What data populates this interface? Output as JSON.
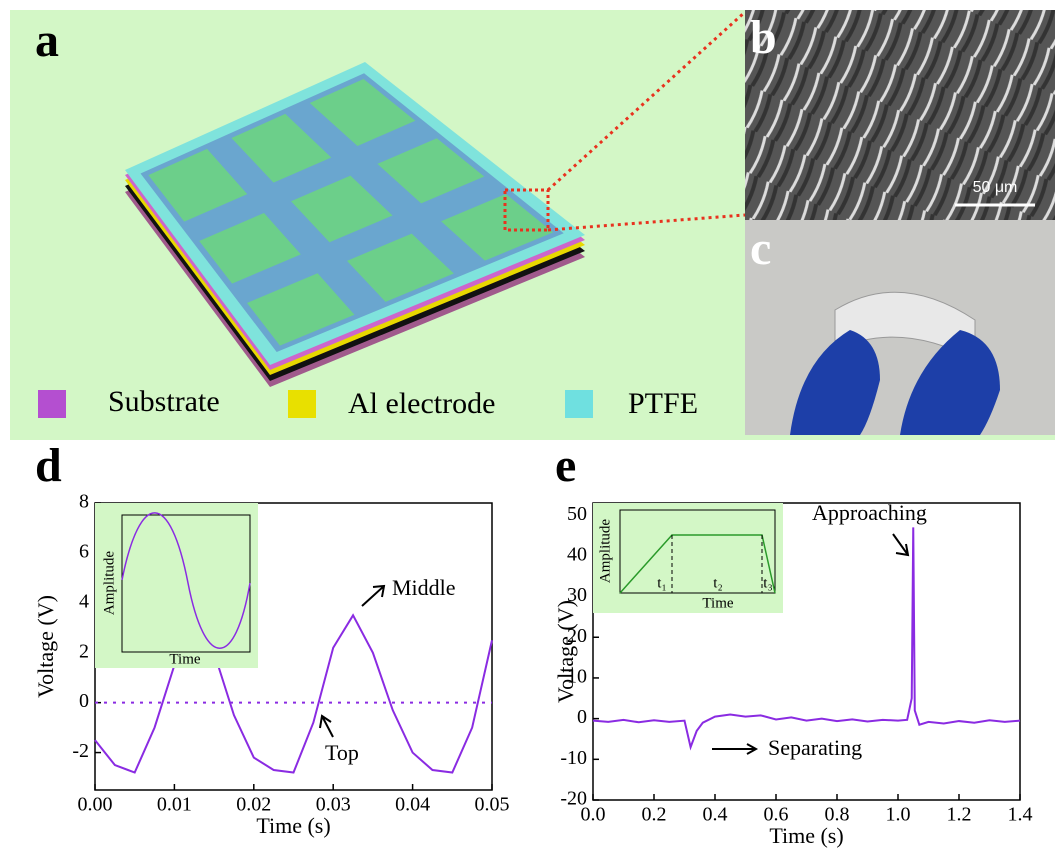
{
  "figure": {
    "panel_labels": [
      "a",
      "b",
      "c"
    ],
    "legend": [
      "Substrate",
      "Al electrode",
      "PTFE"
    ],
    "scale_bar": "50 μm"
  },
  "chart_data": [
    {
      "type": "line",
      "panel_label": "d",
      "x": [
        0,
        0.0025,
        0.005,
        0.0075,
        0.01,
        0.0125,
        0.015,
        0.0175,
        0.02,
        0.0225,
        0.025,
        0.0275,
        0.03,
        0.0325,
        0.035,
        0.0375,
        0.04,
        0.0425,
        0.045,
        0.0475,
        0.05
      ],
      "series": [
        {
          "color": "#8a2be2",
          "values": [
            -1.5,
            -2.5,
            -2.8,
            -1.0,
            1.5,
            3.3,
            2.0,
            -0.5,
            -2.2,
            -2.7,
            -2.8,
            -0.8,
            2.2,
            3.5,
            2.0,
            -0.3,
            -2.0,
            -2.7,
            -2.8,
            -1.0,
            2.5
          ]
        }
      ],
      "xlabel": "Time (s)",
      "ylabel": "Voltage (V)",
      "xlim": [
        0,
        0.05
      ],
      "ylim": [
        -3.5,
        8
      ],
      "xticks": [
        {
          "value": 0,
          "label": "0.00"
        },
        0.01,
        0.02,
        0.03,
        0.04,
        0.05
      ],
      "yticks": [
        -2,
        0,
        2,
        4,
        6,
        8
      ],
      "reference_line": 0,
      "annotations": [
        "Middle",
        "Top"
      ],
      "inset": {
        "xlabel": "Time",
        "ylabel": "Amplitude"
      }
    },
    {
      "type": "line",
      "panel_label": "e",
      "x": [
        0,
        0.05,
        0.1,
        0.15,
        0.2,
        0.25,
        0.3,
        0.32,
        0.34,
        0.36,
        0.4,
        0.45,
        0.5,
        0.55,
        0.6,
        0.65,
        0.7,
        0.75,
        0.8,
        0.85,
        0.9,
        0.95,
        1.0,
        1.03,
        1.045,
        1.05,
        1.055,
        1.07,
        1.1,
        1.15,
        1.2,
        1.25,
        1.3,
        1.35,
        1.4
      ],
      "series": [
        {
          "color": "#8a2be2",
          "values": [
            -0.5,
            -0.8,
            -0.3,
            -0.9,
            -0.4,
            -0.8,
            -0.5,
            -7,
            -3,
            -1,
            0.5,
            1,
            0.5,
            0.8,
            -0.2,
            0.3,
            -0.5,
            0,
            -0.6,
            -0.2,
            -0.7,
            -0.3,
            -0.5,
            -0.3,
            5,
            47,
            2,
            -1.5,
            -0.8,
            -1.2,
            -0.6,
            -1,
            -0.4,
            -0.8,
            -0.5
          ]
        }
      ],
      "xlabel": "Time (s)",
      "ylabel": "Voltage (V)",
      "xlim": [
        0,
        1.4
      ],
      "ylim": [
        -20,
        53
      ],
      "xticks": [
        {
          "value": 0,
          "label": "0.0"
        },
        0.2,
        0.4,
        0.6,
        0.8,
        {
          "value": 1,
          "label": "1.0"
        },
        1.2,
        1.4
      ],
      "yticks": [
        -20,
        -10,
        0,
        10,
        20,
        30,
        40,
        50
      ],
      "annotations": [
        "Approaching",
        "Separating"
      ],
      "inset": {
        "xlabel": "Time",
        "ylabel": "Amplitude",
        "ticks": [
          "t₁",
          "t₂",
          "t₃"
        ]
      }
    }
  ]
}
